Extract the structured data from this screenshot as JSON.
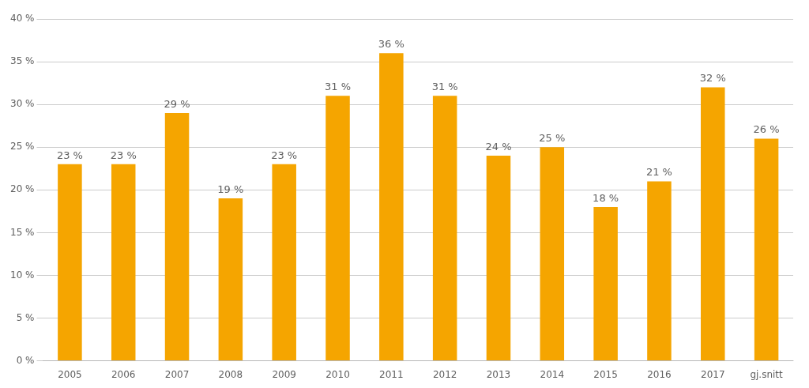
{
  "chart_data": {
    "type": "bar",
    "categories": [
      "2005",
      "2006",
      "2007",
      "2008",
      "2009",
      "2010",
      "2011",
      "2012",
      "2013",
      "2014",
      "2015",
      "2016",
      "2017",
      "gj.snitt"
    ],
    "values": [
      23,
      23,
      29,
      19,
      23,
      31,
      36,
      31,
      24,
      25,
      18,
      21,
      32,
      26
    ],
    "value_labels": [
      "23 %",
      "23 %",
      "29 %",
      "19 %",
      "23 %",
      "31 %",
      "36 %",
      "31 %",
      "24 %",
      "25 %",
      "18 %",
      "21 %",
      "32 %",
      "26 %"
    ],
    "data_labels": true,
    "color": "#F5A500",
    "ylim": [
      0,
      40
    ],
    "yticks": [
      {
        "value": 0,
        "label": "0 %"
      },
      {
        "value": 5,
        "label": "5 %"
      },
      {
        "value": 10,
        "label": "10 %"
      },
      {
        "value": 15,
        "label": "15 %"
      },
      {
        "value": 20,
        "label": "20 %"
      },
      {
        "value": 25,
        "label": "25 %"
      },
      {
        "value": 30,
        "label": "30 %"
      },
      {
        "value": 35,
        "label": "35 %"
      },
      {
        "value": 40,
        "label": "40 %"
      }
    ],
    "grid": true
  }
}
